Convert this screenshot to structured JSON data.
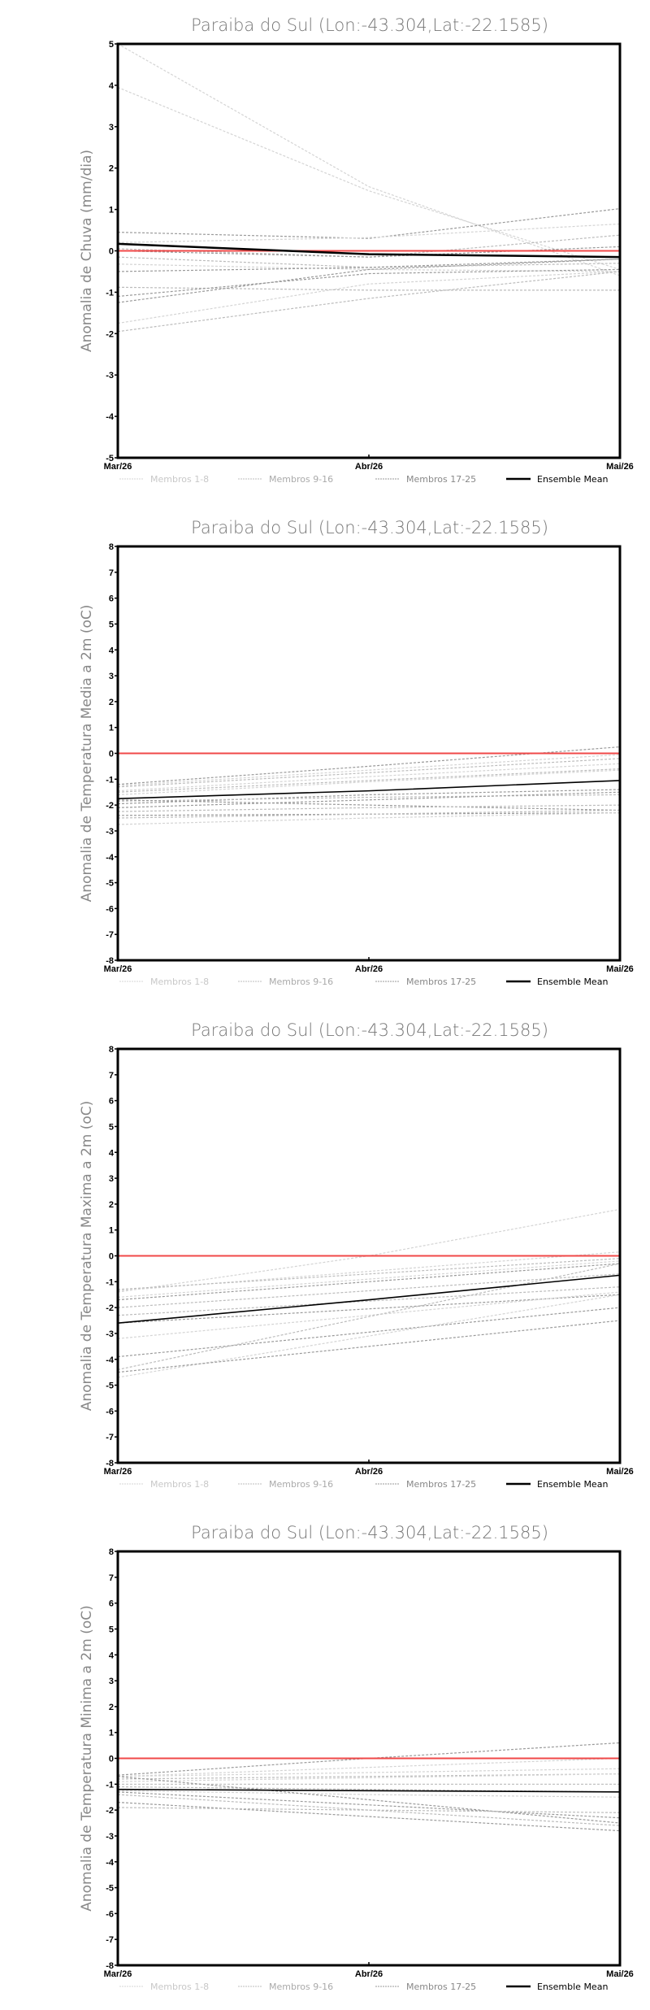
{
  "chart_data": [
    {
      "type": "line",
      "title": "Paraiba do Sul (Lon:-43.304,Lat:-22.1585)",
      "ylabel": "Anomalia de Chuva (mm/dia)",
      "xlabel": "",
      "categories": [
        "Mar/26",
        "Abr/26",
        "Mai/26"
      ],
      "ylim": [
        -5,
        5
      ],
      "yticks": [
        -5,
        -4,
        -3,
        -2,
        -1,
        0,
        1,
        2,
        3,
        4,
        5
      ],
      "reference_line": 0,
      "legend": [
        "Membros 1-8",
        "Membros 9-16",
        "Membros 17-25",
        "Ensemble Mean"
      ],
      "legend_position": "bottom",
      "members": [
        {
          "group": 0,
          "values": [
            5.0,
            1.55,
            -0.6
          ]
        },
        {
          "group": 0,
          "values": [
            3.95,
            1.45,
            -0.45
          ]
        },
        {
          "group": 2,
          "values": [
            0.45,
            0.3,
            1.02
          ]
        },
        {
          "group": 0,
          "values": [
            0.2,
            0.32,
            0.65
          ]
        },
        {
          "group": 1,
          "values": [
            0.05,
            -0.15,
            0.38
          ]
        },
        {
          "group": 2,
          "values": [
            0.0,
            -0.15,
            0.1
          ]
        },
        {
          "group": 1,
          "values": [
            -0.15,
            -0.4,
            -0.3
          ]
        },
        {
          "group": 0,
          "values": [
            -0.32,
            -0.45,
            -0.5
          ]
        },
        {
          "group": 2,
          "values": [
            -0.5,
            -0.4,
            -0.2
          ]
        },
        {
          "group": 1,
          "values": [
            -0.88,
            -0.95,
            -0.95
          ]
        },
        {
          "group": 2,
          "values": [
            -1.1,
            -0.55,
            -0.45
          ]
        },
        {
          "group": 2,
          "values": [
            -1.25,
            -0.45,
            -0.2
          ]
        },
        {
          "group": 0,
          "values": [
            -1.75,
            -0.8,
            -0.5
          ]
        },
        {
          "group": 1,
          "values": [
            -1.95,
            -1.15,
            -0.5
          ]
        }
      ],
      "ensemble_mean": [
        0.17,
        -0.08,
        -0.15
      ]
    },
    {
      "type": "line",
      "title": "Paraiba do Sul (Lon:-43.304,Lat:-22.1585)",
      "ylabel": "Anomalia de Temperatura Media a 2m (oC)",
      "xlabel": "",
      "categories": [
        "Mar/26",
        "Abr/26",
        "Mai/26"
      ],
      "ylim": [
        -8,
        8
      ],
      "yticks": [
        -8,
        -7,
        -6,
        -5,
        -4,
        -3,
        -2,
        -1,
        0,
        1,
        2,
        3,
        4,
        5,
        6,
        7,
        8
      ],
      "reference_line": 0,
      "legend": [
        "Membros 1-8",
        "Membros 9-16",
        "Membros 17-25",
        "Ensemble Mean"
      ],
      "legend_position": "bottom",
      "members": [
        {
          "group": 2,
          "values": [
            -1.2,
            -0.5,
            0.25
          ]
        },
        {
          "group": 0,
          "values": [
            -1.25,
            -0.65,
            -0.05
          ]
        },
        {
          "group": 1,
          "values": [
            -1.3,
            -0.75,
            -0.2
          ]
        },
        {
          "group": 0,
          "values": [
            -1.45,
            -0.9,
            -0.4
          ]
        },
        {
          "group": 1,
          "values": [
            -1.5,
            -1.05,
            -0.6
          ]
        },
        {
          "group": 0,
          "values": [
            -1.6,
            -1.1,
            -0.65
          ]
        },
        {
          "group": 2,
          "values": [
            -1.95,
            -1.6,
            -1.4
          ]
        },
        {
          "group": 1,
          "values": [
            -1.85,
            -1.7,
            -1.6
          ]
        },
        {
          "group": 2,
          "values": [
            -2.1,
            -1.8,
            -1.5
          ]
        },
        {
          "group": 2,
          "values": [
            -1.8,
            -2.0,
            -2.2
          ]
        },
        {
          "group": 1,
          "values": [
            -2.25,
            -2.1,
            -2.0
          ]
        },
        {
          "group": 2,
          "values": [
            -2.4,
            -2.35,
            -2.3
          ]
        },
        {
          "group": 1,
          "values": [
            -2.5,
            -2.35,
            -2.2
          ]
        },
        {
          "group": 0,
          "values": [
            -2.75,
            -2.5,
            -2.3
          ]
        }
      ],
      "ensemble_mean": [
        -1.75,
        -1.45,
        -1.05
      ]
    },
    {
      "type": "line",
      "title": "Paraiba do Sul (Lon:-43.304,Lat:-22.1585)",
      "ylabel": "Anomalia de Temperatura Maxima a 2m (oC)",
      "xlabel": "",
      "categories": [
        "Mar/26",
        "Abr/26",
        "Mai/26"
      ],
      "ylim": [
        -8,
        8
      ],
      "yticks": [
        -8,
        -7,
        -6,
        -5,
        -4,
        -3,
        -2,
        -1,
        0,
        1,
        2,
        3,
        4,
        5,
        6,
        7,
        8
      ],
      "reference_line": 0,
      "legend": [
        "Membros 1-8",
        "Membros 9-16",
        "Membros 17-25",
        "Ensemble Mean"
      ],
      "legend_position": "bottom",
      "members": [
        {
          "group": 0,
          "values": [
            -1.4,
            0.0,
            1.8
          ]
        },
        {
          "group": 0,
          "values": [
            -1.35,
            -0.6,
            0.15
          ]
        },
        {
          "group": 1,
          "values": [
            -1.3,
            -0.7,
            -0.1
          ]
        },
        {
          "group": 0,
          "values": [
            -1.6,
            -0.9,
            -0.2
          ]
        },
        {
          "group": 2,
          "values": [
            -1.7,
            -1.0,
            -0.3
          ]
        },
        {
          "group": 1,
          "values": [
            -2.0,
            -1.35,
            -0.7
          ]
        },
        {
          "group": 1,
          "values": [
            -2.3,
            -1.75,
            -1.2
          ]
        },
        {
          "group": 2,
          "values": [
            -2.6,
            -2.05,
            -1.5
          ]
        },
        {
          "group": 0,
          "values": [
            -3.2,
            -2.3,
            -1.4
          ]
        },
        {
          "group": 2,
          "values": [
            -3.9,
            -2.95,
            -2.0
          ]
        },
        {
          "group": 1,
          "values": [
            -4.4,
            -2.35,
            -0.3
          ]
        },
        {
          "group": 0,
          "values": [
            -4.7,
            -3.1,
            -1.5
          ]
        },
        {
          "group": 2,
          "values": [
            -4.5,
            -3.5,
            -2.5
          ]
        }
      ],
      "ensemble_mean": [
        -2.6,
        -1.7,
        -0.75
      ]
    },
    {
      "type": "line",
      "title": "Paraiba do Sul (Lon:-43.304,Lat:-22.1585)",
      "ylabel": "Anomalia de Temperatura Minima a 2m (oC)",
      "xlabel": "",
      "categories": [
        "Mar/26",
        "Abr/26",
        "Mai/26"
      ],
      "ylim": [
        -8,
        8
      ],
      "yticks": [
        -8,
        -7,
        -6,
        -5,
        -4,
        -3,
        -2,
        -1,
        0,
        1,
        2,
        3,
        4,
        5,
        6,
        7,
        8
      ],
      "reference_line": 0,
      "legend": [
        "Membros 1-8",
        "Membros 9-16",
        "Membros 17-25",
        "Ensemble Mean"
      ],
      "legend_position": "bottom",
      "members": [
        {
          "group": 2,
          "values": [
            -0.65,
            0.0,
            0.6
          ]
        },
        {
          "group": 0,
          "values": [
            -0.7,
            -0.35,
            0.0
          ]
        },
        {
          "group": 0,
          "values": [
            -0.7,
            -0.55,
            -0.4
          ]
        },
        {
          "group": 1,
          "values": [
            -0.8,
            -0.7,
            -0.6
          ]
        },
        {
          "group": 0,
          "values": [
            -0.9,
            -0.75,
            -0.6
          ]
        },
        {
          "group": 1,
          "values": [
            -1.0,
            -1.0,
            -1.0
          ]
        },
        {
          "group": 1,
          "values": [
            -1.1,
            -1.2,
            -1.3
          ]
        },
        {
          "group": 0,
          "values": [
            -1.25,
            -1.4,
            -1.5
          ]
        },
        {
          "group": 2,
          "values": [
            -1.3,
            -1.8,
            -2.3
          ]
        },
        {
          "group": 2,
          "values": [
            -0.7,
            -1.6,
            -2.5
          ]
        },
        {
          "group": 1,
          "values": [
            -1.4,
            -2.0,
            -2.6
          ]
        },
        {
          "group": 2,
          "values": [
            -1.7,
            -2.25,
            -2.8
          ]
        },
        {
          "group": 1,
          "values": [
            -1.9,
            -2.0,
            -2.1
          ]
        }
      ],
      "ensemble_mean": [
        -1.2,
        -1.25,
        -1.3
      ]
    }
  ],
  "colors": {
    "groups": [
      "#d4d4d4",
      "#bcbcbc",
      "#9a9a9a"
    ],
    "mean": "#000000",
    "reference": "#f04848",
    "title": "#777777"
  }
}
